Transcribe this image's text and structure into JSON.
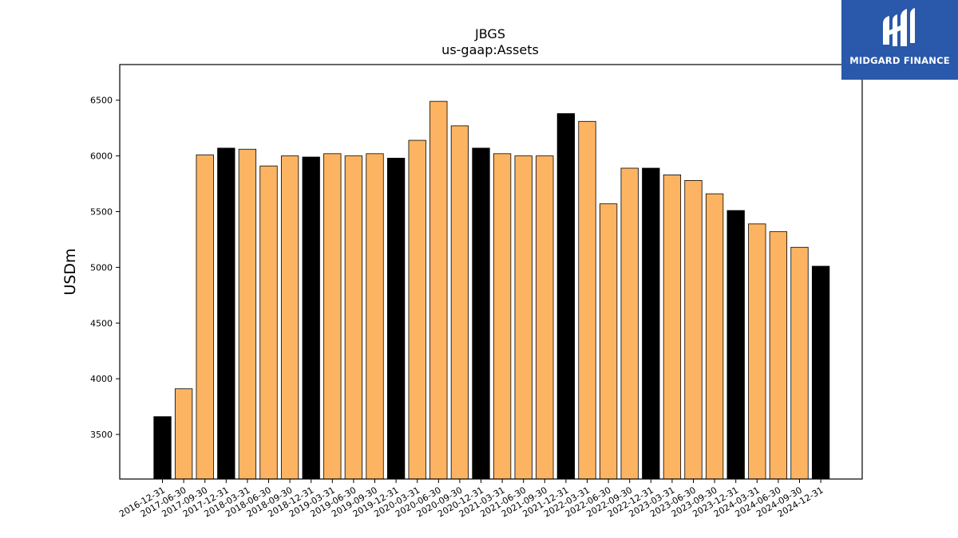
{
  "brand": {
    "name": "MIDGARD FINANCE",
    "logo_icon": "midgard-logo-icon",
    "bg_color": "#2a58ab"
  },
  "chart_data": {
    "type": "bar",
    "title": "JBGS",
    "subtitle": "us-gaap:Assets",
    "xlabel": "",
    "ylabel": "USDm",
    "ylim": [
      3100,
      6820
    ],
    "yticks": [
      3500,
      4000,
      4500,
      5000,
      5500,
      6000,
      6500
    ],
    "grid": false,
    "colors": {
      "q4": "#000000",
      "other": "#fdb462"
    },
    "categories": [
      "2016-12-31",
      "2017-06-30",
      "2017-09-30",
      "2017-12-31",
      "2018-03-31",
      "2018-06-30",
      "2018-09-30",
      "2018-12-31",
      "2019-03-31",
      "2019-06-30",
      "2019-09-30",
      "2019-12-31",
      "2020-03-31",
      "2020-06-30",
      "2020-09-30",
      "2020-12-31",
      "2021-03-31",
      "2021-06-30",
      "2021-09-30",
      "2021-12-31",
      "2022-03-31",
      "2022-06-30",
      "2022-09-30",
      "2022-12-31",
      "2023-03-31",
      "2023-06-30",
      "2023-09-30",
      "2023-12-31",
      "2024-03-31",
      "2024-06-30",
      "2024-09-30",
      "2024-12-31"
    ],
    "values": [
      3660,
      3910,
      6010,
      6070,
      6060,
      5910,
      6000,
      5990,
      6020,
      6000,
      6020,
      5980,
      6140,
      6490,
      6270,
      6070,
      6020,
      6000,
      6000,
      6380,
      6310,
      5570,
      5890,
      5890,
      5830,
      5780,
      5660,
      5510,
      5390,
      5320,
      5180,
      5010
    ]
  }
}
